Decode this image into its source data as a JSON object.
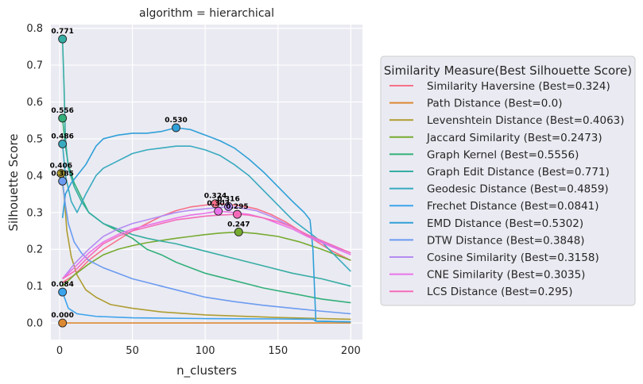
{
  "chart_data": {
    "type": "line",
    "title": "algorithm = hierarchical",
    "xlabel": "n_clusters",
    "ylabel": "Silhouette Score",
    "xlim": [
      -6,
      208
    ],
    "ylim": [
      -0.045,
      0.81
    ],
    "xticks": [
      0,
      50,
      100,
      150,
      200
    ],
    "yticks": [
      0.0,
      0.1,
      0.2,
      0.3,
      0.4,
      0.5,
      0.6,
      0.7,
      0.8
    ],
    "grid": true,
    "background": "#eaeaf2",
    "legend": {
      "title": "Similarity Measure(Best Silhouette Score)",
      "placement": "right"
    },
    "series": [
      {
        "name": "Similarity Haversine (Best=0.324)",
        "color": "#f77189",
        "best": {
          "x": 107,
          "y": 0.324,
          "label": "0.324"
        },
        "points": [
          [
            2,
            0.11
          ],
          [
            10,
            0.13
          ],
          [
            20,
            0.17
          ],
          [
            30,
            0.2
          ],
          [
            40,
            0.225
          ],
          [
            50,
            0.25
          ],
          [
            60,
            0.27
          ],
          [
            70,
            0.29
          ],
          [
            80,
            0.305
          ],
          [
            90,
            0.315
          ],
          [
            100,
            0.32
          ],
          [
            107,
            0.324
          ],
          [
            115,
            0.322
          ],
          [
            125,
            0.318
          ],
          [
            135,
            0.31
          ],
          [
            145,
            0.295
          ],
          [
            155,
            0.275
          ],
          [
            165,
            0.25
          ],
          [
            175,
            0.225
          ],
          [
            185,
            0.2
          ],
          [
            200,
            0.17
          ]
        ]
      },
      {
        "name": "Path Distance (Best=0.0)",
        "color": "#dc8932",
        "best": {
          "x": 2,
          "y": 0.0,
          "label": "0.000"
        },
        "points": [
          [
            2,
            0.0
          ],
          [
            200,
            0.0
          ]
        ]
      },
      {
        "name": "Levenshtein Distance (Best=0.4063)",
        "color": "#ae9d31",
        "best": {
          "x": 1,
          "y": 0.406,
          "label": "0.406"
        },
        "points": [
          [
            1,
            0.406
          ],
          [
            3,
            0.35
          ],
          [
            5,
            0.25
          ],
          [
            8,
            0.18
          ],
          [
            12,
            0.13
          ],
          [
            18,
            0.09
          ],
          [
            25,
            0.07
          ],
          [
            35,
            0.05
          ],
          [
            50,
            0.04
          ],
          [
            70,
            0.03
          ],
          [
            100,
            0.022
          ],
          [
            150,
            0.015
          ],
          [
            200,
            0.01
          ]
        ]
      },
      {
        "name": "Jaccard Similarity (Best=0.2473)",
        "color": "#77ab31",
        "best": {
          "x": 123,
          "y": 0.247,
          "label": "0.247"
        },
        "points": [
          [
            2,
            0.1
          ],
          [
            10,
            0.13
          ],
          [
            20,
            0.16
          ],
          [
            30,
            0.185
          ],
          [
            40,
            0.2
          ],
          [
            50,
            0.21
          ],
          [
            60,
            0.218
          ],
          [
            70,
            0.224
          ],
          [
            80,
            0.23
          ],
          [
            90,
            0.235
          ],
          [
            100,
            0.24
          ],
          [
            110,
            0.244
          ],
          [
            123,
            0.247
          ],
          [
            135,
            0.243
          ],
          [
            150,
            0.235
          ],
          [
            165,
            0.22
          ],
          [
            180,
            0.2
          ],
          [
            190,
            0.185
          ],
          [
            200,
            0.17
          ]
        ]
      },
      {
        "name": "Graph Kernel (Best=0.5556)",
        "color": "#33b07a",
        "best": {
          "x": 2,
          "y": 0.556,
          "label": "0.556"
        },
        "points": [
          [
            2,
            0.556
          ],
          [
            4,
            0.48
          ],
          [
            6,
            0.43
          ],
          [
            10,
            0.38
          ],
          [
            15,
            0.34
          ],
          [
            20,
            0.3
          ],
          [
            30,
            0.27
          ],
          [
            40,
            0.25
          ],
          [
            50,
            0.23
          ],
          [
            60,
            0.2
          ],
          [
            70,
            0.185
          ],
          [
            80,
            0.165
          ],
          [
            90,
            0.15
          ],
          [
            100,
            0.135
          ],
          [
            120,
            0.115
          ],
          [
            140,
            0.095
          ],
          [
            160,
            0.08
          ],
          [
            180,
            0.065
          ],
          [
            200,
            0.055
          ]
        ]
      },
      {
        "name": "Graph Edit Distance (Best=0.771)",
        "color": "#36ada4",
        "best": {
          "x": 2,
          "y": 0.771,
          "label": "0.771"
        },
        "points": [
          [
            2,
            0.771
          ],
          [
            3,
            0.65
          ],
          [
            4,
            0.5
          ],
          [
            6,
            0.42
          ],
          [
            10,
            0.37
          ],
          [
            15,
            0.33
          ],
          [
            20,
            0.3
          ],
          [
            30,
            0.27
          ],
          [
            40,
            0.255
          ],
          [
            50,
            0.24
          ],
          [
            60,
            0.23
          ],
          [
            70,
            0.222
          ],
          [
            80,
            0.215
          ],
          [
            90,
            0.205
          ],
          [
            100,
            0.195
          ],
          [
            120,
            0.175
          ],
          [
            140,
            0.155
          ],
          [
            160,
            0.135
          ],
          [
            180,
            0.12
          ],
          [
            200,
            0.1
          ]
        ]
      },
      {
        "name": "Geodesic Distance (Best=0.4859)",
        "color": "#38aabf",
        "best": {
          "x": 2,
          "y": 0.486,
          "label": "0.486"
        },
        "points": [
          [
            2,
            0.486
          ],
          [
            4,
            0.4
          ],
          [
            8,
            0.33
          ],
          [
            12,
            0.3
          ],
          [
            18,
            0.35
          ],
          [
            25,
            0.4
          ],
          [
            30,
            0.42
          ],
          [
            40,
            0.44
          ],
          [
            50,
            0.46
          ],
          [
            60,
            0.47
          ],
          [
            70,
            0.475
          ],
          [
            80,
            0.48
          ],
          [
            90,
            0.48
          ],
          [
            100,
            0.47
          ],
          [
            110,
            0.455
          ],
          [
            120,
            0.43
          ],
          [
            130,
            0.4
          ],
          [
            140,
            0.36
          ],
          [
            150,
            0.32
          ],
          [
            160,
            0.28
          ],
          [
            170,
            0.25
          ],
          [
            180,
            0.22
          ],
          [
            190,
            0.18
          ],
          [
            200,
            0.14
          ]
        ]
      },
      {
        "name": "Frechet Distance (Best=0.0841)",
        "color": "#3ba3ec",
        "best": {
          "x": 2,
          "y": 0.084,
          "label": "0.084"
        },
        "points": [
          [
            2,
            0.084
          ],
          [
            6,
            0.04
          ],
          [
            12,
            0.025
          ],
          [
            25,
            0.018
          ],
          [
            50,
            0.014
          ],
          [
            100,
            0.012
          ],
          [
            150,
            0.011
          ],
          [
            174,
            0.01
          ],
          [
            176,
            0.005
          ],
          [
            200,
            0.003
          ]
        ]
      },
      {
        "name": "EMD Distance (Best=0.5302)",
        "color": "#30a0d8",
        "best": {
          "x": 80,
          "y": 0.53,
          "label": "0.530"
        },
        "points": [
          [
            2,
            0.285
          ],
          [
            4,
            0.35
          ],
          [
            8,
            0.38
          ],
          [
            12,
            0.4
          ],
          [
            18,
            0.43
          ],
          [
            25,
            0.48
          ],
          [
            30,
            0.5
          ],
          [
            40,
            0.51
          ],
          [
            50,
            0.515
          ],
          [
            60,
            0.515
          ],
          [
            70,
            0.52
          ],
          [
            80,
            0.53
          ],
          [
            90,
            0.525
          ],
          [
            100,
            0.51
          ],
          [
            110,
            0.495
          ],
          [
            120,
            0.475
          ],
          [
            130,
            0.445
          ],
          [
            140,
            0.41
          ],
          [
            150,
            0.37
          ],
          [
            160,
            0.33
          ],
          [
            168,
            0.3
          ],
          [
            172,
            0.28
          ],
          [
            174,
            0.2
          ],
          [
            176,
            0.005
          ],
          [
            200,
            0.003
          ]
        ]
      },
      {
        "name": "DTW Distance (Best=0.3848)",
        "color": "#6b9bf0",
        "best": {
          "x": 2,
          "y": 0.385,
          "label": "0.385"
        },
        "points": [
          [
            2,
            0.385
          ],
          [
            4,
            0.32
          ],
          [
            6,
            0.27
          ],
          [
            10,
            0.22
          ],
          [
            15,
            0.19
          ],
          [
            20,
            0.17
          ],
          [
            30,
            0.15
          ],
          [
            40,
            0.135
          ],
          [
            50,
            0.12
          ],
          [
            60,
            0.11
          ],
          [
            70,
            0.1
          ],
          [
            80,
            0.09
          ],
          [
            90,
            0.08
          ],
          [
            100,
            0.07
          ],
          [
            120,
            0.058
          ],
          [
            140,
            0.048
          ],
          [
            160,
            0.04
          ],
          [
            180,
            0.032
          ],
          [
            200,
            0.025
          ]
        ]
      },
      {
        "name": "Cosine Similarity (Best=0.3158)",
        "color": "#b48cf2",
        "best": {
          "x": 116,
          "y": 0.316,
          "label": "0.316"
        },
        "points": [
          [
            2,
            0.12
          ],
          [
            10,
            0.16
          ],
          [
            20,
            0.2
          ],
          [
            30,
            0.235
          ],
          [
            40,
            0.255
          ],
          [
            50,
            0.27
          ],
          [
            60,
            0.28
          ],
          [
            70,
            0.29
          ],
          [
            80,
            0.3
          ],
          [
            90,
            0.306
          ],
          [
            100,
            0.31
          ],
          [
            116,
            0.316
          ],
          [
            125,
            0.312
          ],
          [
            135,
            0.305
          ],
          [
            145,
            0.29
          ],
          [
            155,
            0.27
          ],
          [
            165,
            0.25
          ],
          [
            175,
            0.23
          ],
          [
            190,
            0.205
          ],
          [
            200,
            0.19
          ]
        ]
      },
      {
        "name": "CNE Similarity (Best=0.3035)",
        "color": "#e973e8",
        "best": {
          "x": 109,
          "y": 0.3035,
          "label": "0.303"
        },
        "points": [
          [
            2,
            0.12
          ],
          [
            10,
            0.15
          ],
          [
            20,
            0.19
          ],
          [
            30,
            0.22
          ],
          [
            40,
            0.24
          ],
          [
            50,
            0.255
          ],
          [
            60,
            0.265
          ],
          [
            70,
            0.275
          ],
          [
            80,
            0.285
          ],
          [
            90,
            0.293
          ],
          [
            100,
            0.298
          ],
          [
            109,
            0.3035
          ],
          [
            120,
            0.3
          ],
          [
            130,
            0.295
          ],
          [
            140,
            0.285
          ],
          [
            150,
            0.27
          ],
          [
            160,
            0.255
          ],
          [
            170,
            0.235
          ],
          [
            185,
            0.21
          ],
          [
            200,
            0.185
          ]
        ]
      },
      {
        "name": "LCS Distance (Best=0.295)",
        "color": "#f66bb9",
        "best": {
          "x": 122,
          "y": 0.295,
          "label": "0.295"
        },
        "points": [
          [
            2,
            0.12
          ],
          [
            10,
            0.14
          ],
          [
            20,
            0.18
          ],
          [
            30,
            0.215
          ],
          [
            40,
            0.235
          ],
          [
            50,
            0.25
          ],
          [
            60,
            0.26
          ],
          [
            70,
            0.27
          ],
          [
            80,
            0.28
          ],
          [
            90,
            0.285
          ],
          [
            100,
            0.29
          ],
          [
            110,
            0.293
          ],
          [
            122,
            0.295
          ],
          [
            130,
            0.293
          ],
          [
            140,
            0.285
          ],
          [
            150,
            0.275
          ],
          [
            160,
            0.26
          ],
          [
            170,
            0.24
          ],
          [
            185,
            0.215
          ],
          [
            200,
            0.19
          ]
        ]
      }
    ]
  }
}
